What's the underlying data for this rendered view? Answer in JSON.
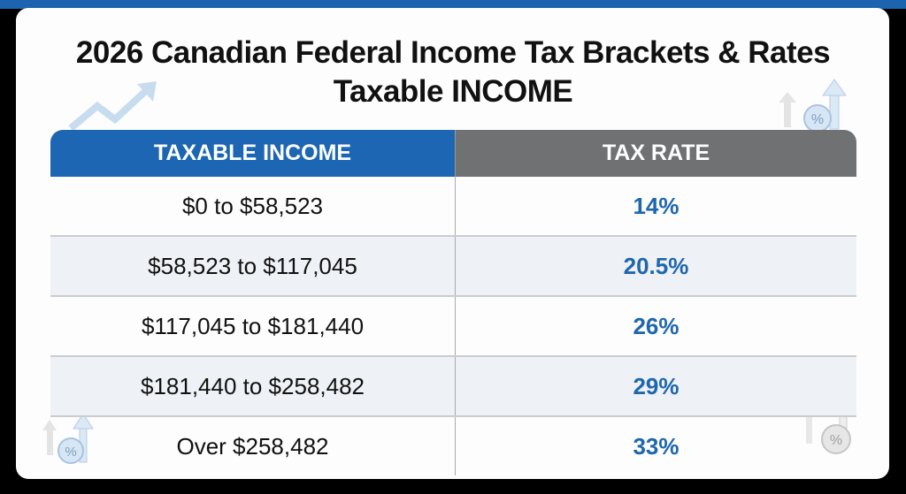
{
  "title": {
    "line1": "2026 Canadian Federal Income Tax Brackets & Rates",
    "line2": "Taxable INCOME"
  },
  "table": {
    "headers": [
      "TAXABLE INCOME",
      "TAX RATE"
    ],
    "rows": [
      {
        "income": "$0 to $58,523",
        "rate": "14%"
      },
      {
        "income": "$58,523 to $117,045",
        "rate": "20.5%"
      },
      {
        "income": "$117,045 to $181,440",
        "rate": "26%"
      },
      {
        "income": "$181,440 to $258,482",
        "rate": "29%"
      },
      {
        "income": "Over $258,482",
        "rate": "33%"
      }
    ]
  },
  "colors": {
    "header_income": "#1d66b3",
    "header_rate": "#6f7173",
    "rate_text": "#1f67ad",
    "alt_row": "#eef1f5"
  },
  "icons": [
    "trend-arrow-icon",
    "percent-arrow-icon"
  ]
}
